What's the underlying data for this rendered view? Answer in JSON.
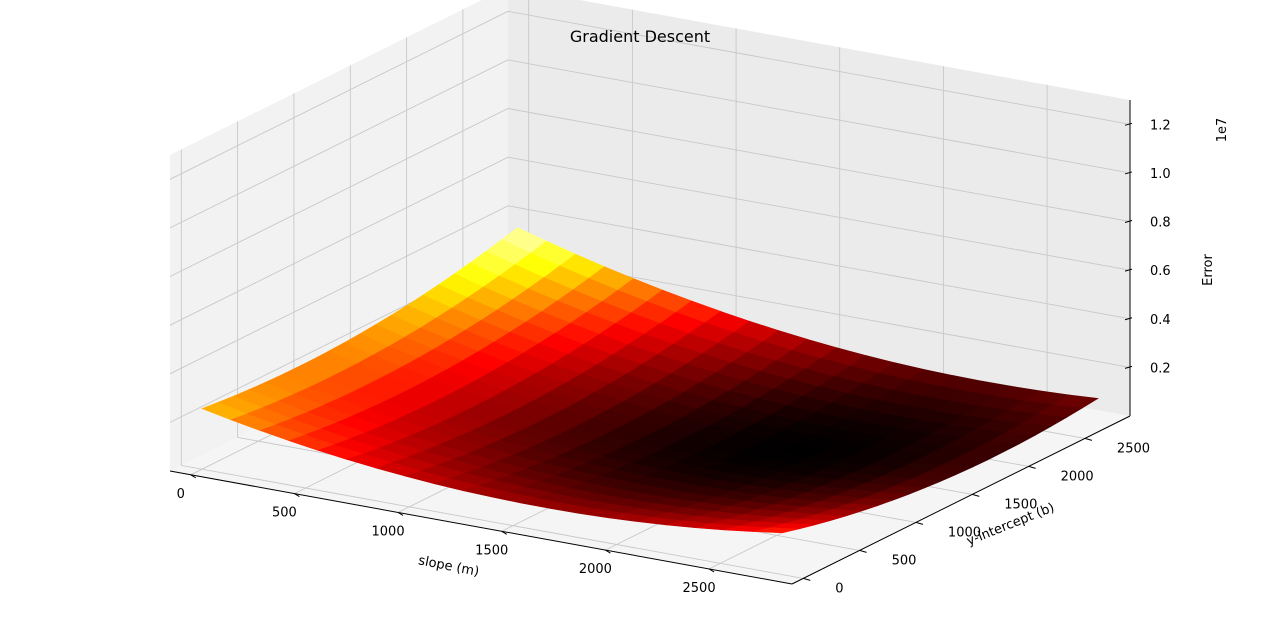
{
  "chart_data": {
    "type": "surface",
    "title": "Gradient Descent",
    "xlabel": "slope (m)",
    "ylabel": "y-intercept (b)",
    "zlabel": "Error",
    "z_offset_label": "1e7",
    "x_ticks": [
      "0",
      "500",
      "1000",
      "1500",
      "2000",
      "2500"
    ],
    "y_ticks": [
      "0",
      "500",
      "1000",
      "1500",
      "2000",
      "2500"
    ],
    "z_ticks": [
      "0.2",
      "0.4",
      "0.6",
      "0.8",
      "1.0",
      "1.2"
    ],
    "x_range": [
      -100,
      2900
    ],
    "y_range": [
      -100,
      2900
    ],
    "z_range": [
      0,
      13000000
    ],
    "x_grid_values": [
      0,
      500,
      1000,
      1500,
      2000,
      2500
    ],
    "y_grid_values": [
      0,
      500,
      1000,
      1500,
      2000,
      2500
    ],
    "z_grid_values": [
      2000000,
      4000000,
      6000000,
      8000000,
      10000000,
      12000000
    ],
    "surface": {
      "m_range": [
        0,
        2800
      ],
      "b_range": [
        0,
        2800
      ],
      "resolution": 20,
      "min_point": {
        "m": 2000,
        "b": 1600,
        "error": 200000
      },
      "corner_errors": {
        "m0_b0": 5500000,
        "m2800_b0": 1000000,
        "m0_b2800": 1000000,
        "m2800_b2800": 3500000
      },
      "colormap": "hot"
    },
    "grid": true
  }
}
